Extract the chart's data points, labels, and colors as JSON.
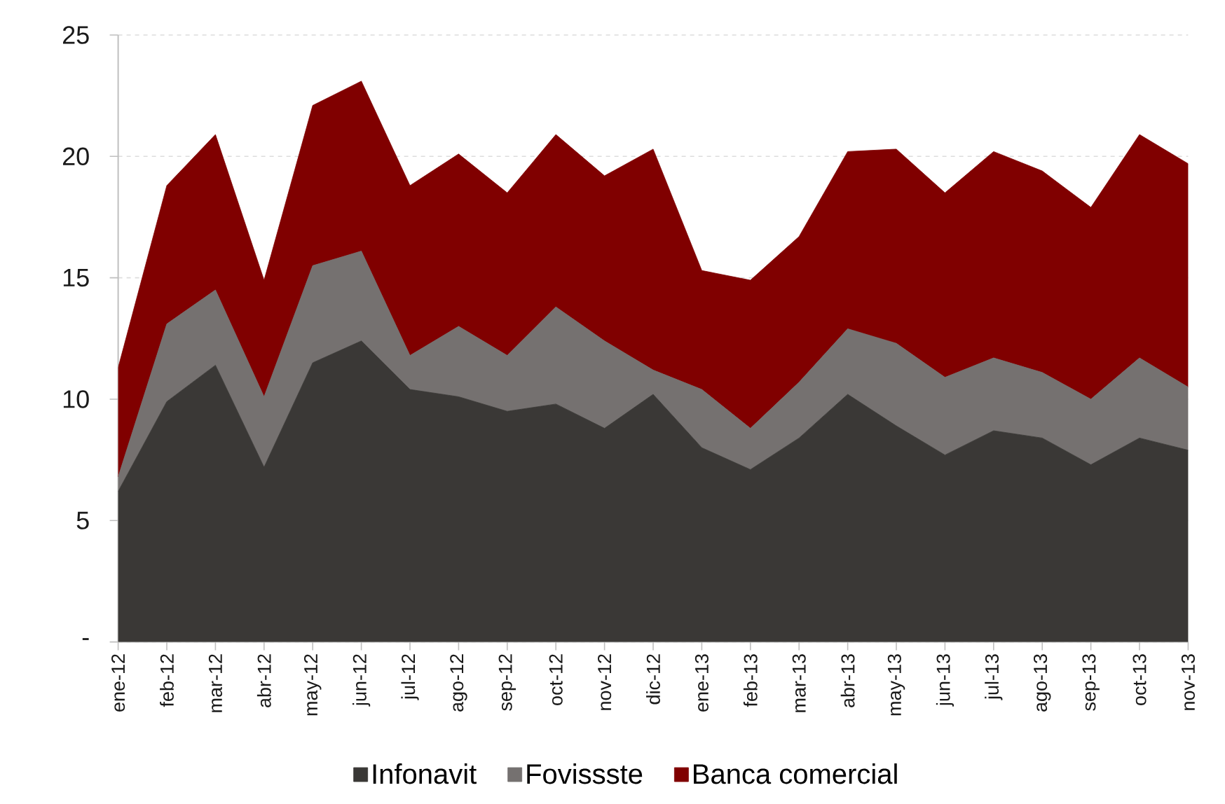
{
  "chart_data": {
    "type": "area",
    "stacked": true,
    "categories": [
      "ene-12",
      "feb-12",
      "mar-12",
      "abr-12",
      "may-12",
      "jun-12",
      "jul-12",
      "ago-12",
      "sep-12",
      "oct-12",
      "nov-12",
      "dic-12",
      "ene-13",
      "feb-13",
      "mar-13",
      "abr-13",
      "may-13",
      "jun-13",
      "jul-13",
      "ago-13",
      "sep-13",
      "oct-13",
      "nov-13"
    ],
    "series": [
      {
        "name": "Infonavit",
        "color": "#3a3836",
        "values": [
          6.2,
          9.9,
          11.4,
          7.2,
          11.5,
          12.4,
          10.4,
          10.1,
          9.5,
          9.8,
          8.8,
          10.2,
          8.0,
          7.1,
          8.4,
          10.2,
          8.9,
          7.7,
          8.7,
          8.4,
          7.3,
          8.4,
          7.9
        ]
      },
      {
        "name": "Fovissste",
        "color": "#757170",
        "values": [
          0.6,
          3.2,
          3.1,
          2.9,
          4.0,
          3.7,
          1.4,
          2.9,
          2.3,
          4.0,
          3.6,
          1.0,
          2.4,
          1.7,
          2.3,
          2.7,
          3.4,
          3.2,
          3.0,
          2.7,
          2.7,
          3.3,
          2.6
        ]
      },
      {
        "name": "Banca comercial",
        "color": "#800000",
        "values": [
          4.5,
          5.7,
          6.4,
          4.8,
          6.6,
          7.0,
          7.0,
          7.1,
          6.7,
          7.1,
          6.8,
          9.1,
          4.9,
          6.1,
          6.0,
          7.3,
          8.0,
          7.6,
          8.5,
          8.3,
          7.9,
          9.2,
          9.2
        ]
      }
    ],
    "ylim": [
      0,
      25
    ],
    "yticks": [
      {
        "value": 0,
        "label": "-"
      },
      5,
      10,
      15,
      20,
      25
    ],
    "grid": "y",
    "legend": "bottom"
  }
}
